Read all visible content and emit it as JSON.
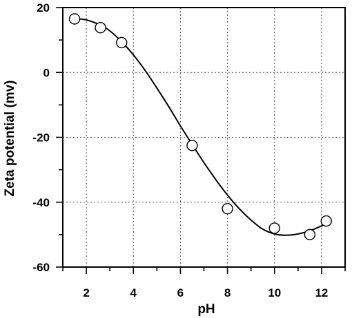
{
  "chart_data": {
    "type": "scatter",
    "xlabel": "pH",
    "ylabel": "Zeta potential (mv)",
    "xlim": [
      1,
      13
    ],
    "ylim": [
      -60,
      20
    ],
    "x_major_ticks": [
      2,
      4,
      6,
      8,
      10,
      12
    ],
    "x_minor_ticks": [
      1,
      3,
      5,
      7,
      9,
      11,
      13
    ],
    "y_major_ticks": [
      -60,
      -40,
      -20,
      0,
      20
    ],
    "y_minor_ticks": [
      -50,
      -30,
      -10,
      10
    ],
    "x_tick_labels": [
      "2",
      "4",
      "6",
      "8",
      "10",
      "12"
    ],
    "y_tick_labels": [
      "-60",
      "-40",
      "-20",
      "0",
      "20"
    ],
    "grid": true,
    "series": [
      {
        "points": [
          {
            "x": 1.5,
            "y": 16.5
          },
          {
            "x": 2.6,
            "y": 13.8
          },
          {
            "x": 3.5,
            "y": 9.2
          },
          {
            "x": 6.5,
            "y": -22.5
          },
          {
            "x": 8.0,
            "y": -42.0
          },
          {
            "x": 10.0,
            "y": -48.0
          },
          {
            "x": 11.5,
            "y": -50.0
          },
          {
            "x": 12.2,
            "y": -45.8
          }
        ],
        "fit_curve": [
          {
            "x": 1.5,
            "y": 16.6
          },
          {
            "x": 2.0,
            "y": 16.2
          },
          {
            "x": 2.6,
            "y": 14.6
          },
          {
            "x": 3.0,
            "y": 12.8
          },
          {
            "x": 3.5,
            "y": 9.5
          },
          {
            "x": 4.0,
            "y": 5.4
          },
          {
            "x": 4.5,
            "y": 0.6
          },
          {
            "x": 5.0,
            "y": -4.8
          },
          {
            "x": 5.5,
            "y": -10.5
          },
          {
            "x": 6.0,
            "y": -16.5
          },
          {
            "x": 6.5,
            "y": -22.2
          },
          {
            "x": 7.0,
            "y": -27.8
          },
          {
            "x": 7.5,
            "y": -33.0
          },
          {
            "x": 8.0,
            "y": -37.8
          },
          {
            "x": 8.5,
            "y": -42.0
          },
          {
            "x": 9.0,
            "y": -45.5
          },
          {
            "x": 9.5,
            "y": -48.3
          },
          {
            "x": 10.0,
            "y": -49.8
          },
          {
            "x": 10.5,
            "y": -50.2
          },
          {
            "x": 11.0,
            "y": -49.8
          },
          {
            "x": 11.5,
            "y": -48.8
          },
          {
            "x": 12.0,
            "y": -47.3
          },
          {
            "x": 12.2,
            "y": -46.6
          }
        ]
      }
    ]
  }
}
